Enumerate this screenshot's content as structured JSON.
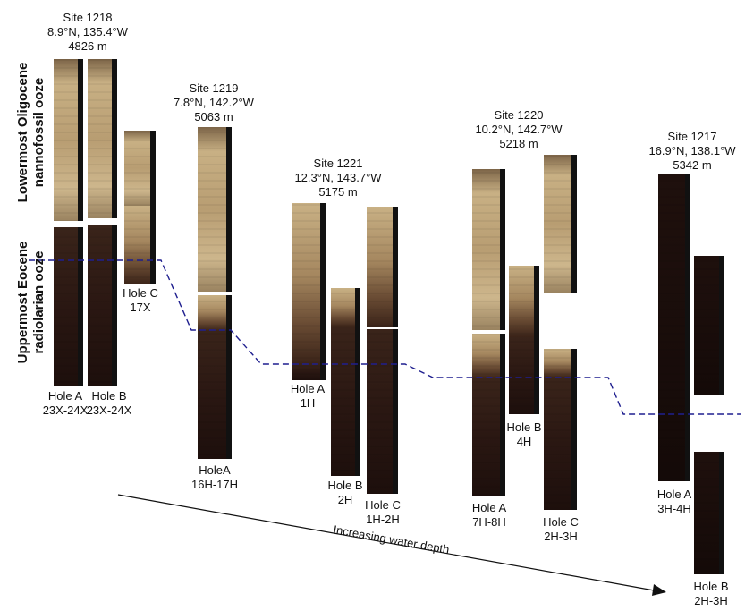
{
  "side_labels": {
    "upper_line1": "Lowermost Oligocene",
    "upper_line2": "nannofossil ooze",
    "lower_line1": "Uppermost Eocene",
    "lower_line2": "radiolarian ooze"
  },
  "arrow_label": "Increasing water depth",
  "colors": {
    "boundary_line": "#1f1f8f",
    "light_sediment": "#c9b185",
    "dark_sediment": "#2a1712",
    "core_frame": "#111111"
  },
  "sites": [
    {
      "id": "s1218",
      "name": "Site 1218",
      "coords": "8.9°N, 135.4°W",
      "depth": "4826 m",
      "holes": [
        {
          "id": "s1218a",
          "label1": "Hole A",
          "label2": "23X-24X"
        },
        {
          "id": "s1218b",
          "label1": "Hole B",
          "label2": "23X-24X"
        },
        {
          "id": "s1218c",
          "label1": "Hole C",
          "label2": "17X"
        }
      ]
    },
    {
      "id": "s1219",
      "name": "Site 1219",
      "coords": "7.8°N, 142.2°W",
      "depth": "5063 m",
      "holes": [
        {
          "id": "s1219a",
          "label1": "HoleA",
          "label2": "16H-17H"
        }
      ]
    },
    {
      "id": "s1221",
      "name": "Site 1221",
      "coords": "12.3°N, 143.7°W",
      "depth": "5175 m",
      "holes": [
        {
          "id": "s1221a",
          "label1": "Hole A",
          "label2": "1H"
        },
        {
          "id": "s1221b",
          "label1": "Hole B",
          "label2": "2H"
        },
        {
          "id": "s1221c",
          "label1": "Hole C",
          "label2": "1H-2H"
        }
      ]
    },
    {
      "id": "s1220",
      "name": "Site 1220",
      "coords": "10.2°N, 142.7°W",
      "depth": "5218 m",
      "holes": [
        {
          "id": "s1220a",
          "label1": "Hole A",
          "label2": "7H-8H"
        },
        {
          "id": "s1220b",
          "label1": "Hole B",
          "label2": "4H"
        },
        {
          "id": "s1220c",
          "label1": "Hole C",
          "label2": "2H-3H"
        }
      ]
    },
    {
      "id": "s1217",
      "name": "Site 1217",
      "coords": "16.9°N, 138.1°W",
      "depth": "5342 m",
      "holes": [
        {
          "id": "s1217a",
          "label1": "Hole A",
          "label2": "3H-4H"
        },
        {
          "id": "s1217b",
          "label1": "Hole B",
          "label2": "2H-3H"
        }
      ]
    }
  ]
}
